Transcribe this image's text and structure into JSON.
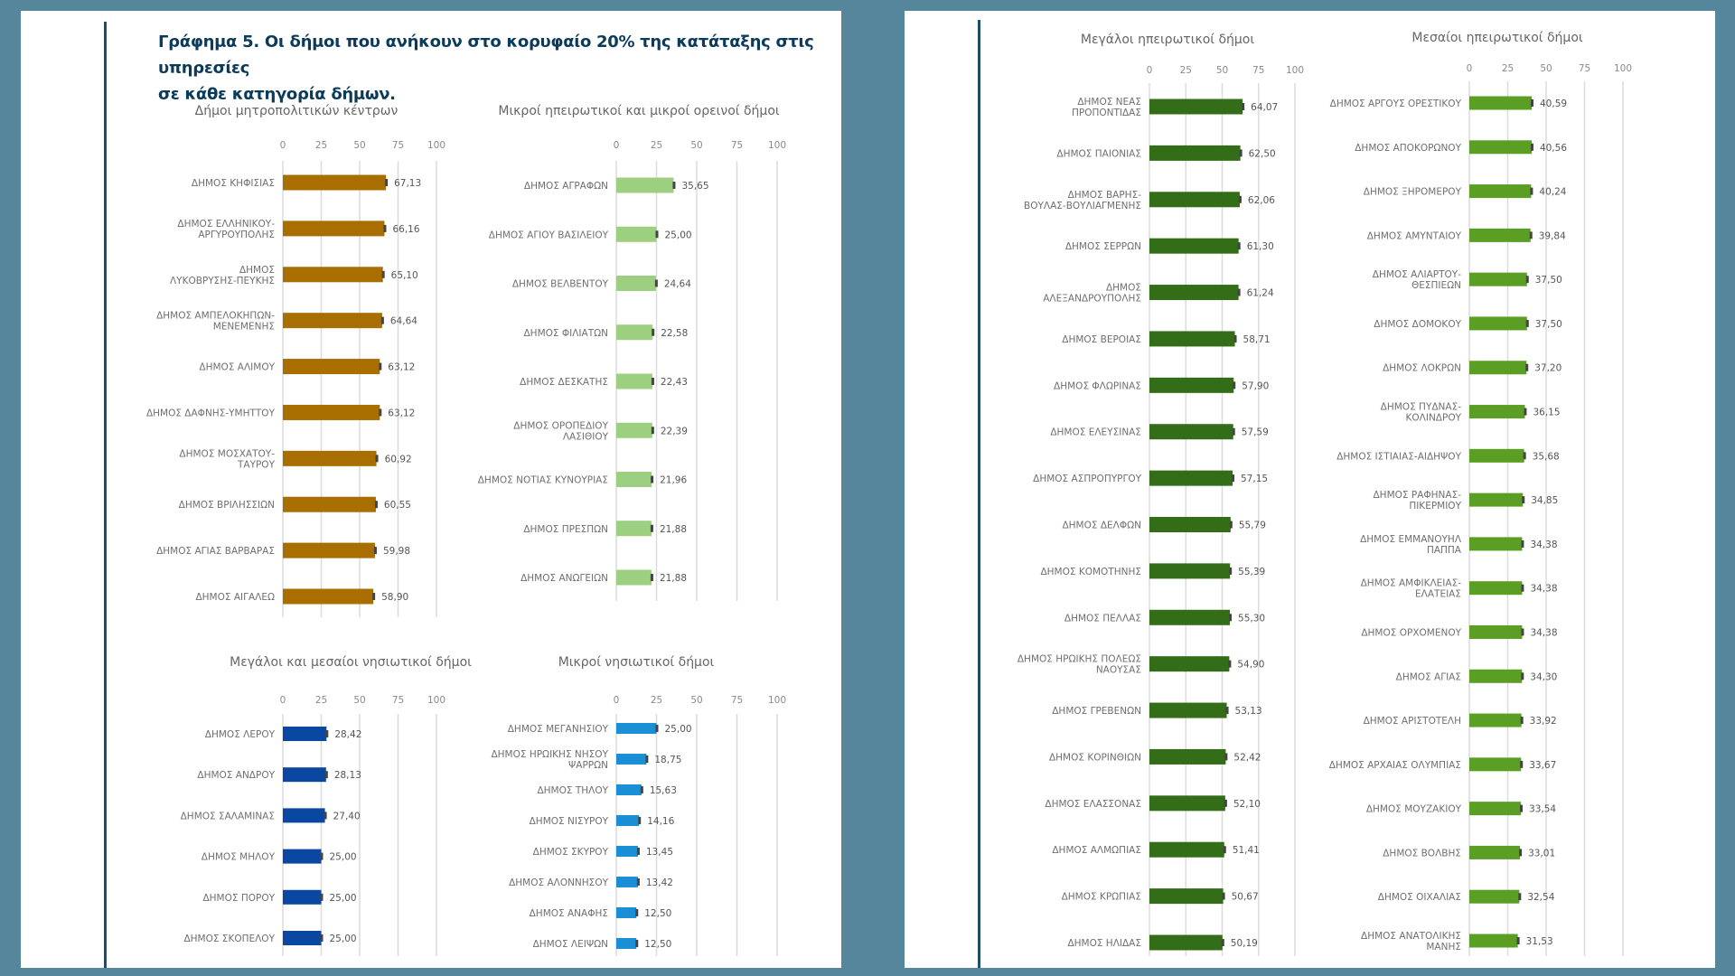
{
  "figure": {
    "title_line1": "Γράφημα 5. Οι δήμοι που ανήκουν στο κορυφαίο 20% της κατάταξης στις υπηρεσίες",
    "title_line2": "σε κάθε κατηγορία δήμων."
  },
  "colors": {
    "background": "#55869c",
    "rule": "#1f4e6b",
    "title": "#0b3b5a"
  },
  "chart_data": [
    {
      "id": "metro",
      "type": "bar",
      "orientation": "horizontal",
      "title": "Δήμοι μητροπολιτικών κέντρων",
      "xlim": [
        0,
        100
      ],
      "ticks": [
        0,
        25,
        50,
        75,
        100
      ],
      "grid": true,
      "color": "#a86f00",
      "categories": [
        [
          "ΔΗΜΟΣ ΚΗΦΙΣΙΑΣ"
        ],
        [
          "ΔΗΜΟΣ ΕΛΛΗΝΙΚΟΥ-",
          "ΑΡΓΥΡΟΥΠΟΛΗΣ"
        ],
        [
          "ΔΗΜΟΣ",
          "ΛΥΚΟΒΡΥΣΗΣ-ΠΕΥΚΗΣ"
        ],
        [
          "ΔΗΜΟΣ ΑΜΠΕΛΟΚΗΠΩΝ-",
          "ΜΕΝΕΜΕΝΗΣ"
        ],
        [
          "ΔΗΜΟΣ ΑΛΙΜΟΥ"
        ],
        [
          "ΔΗΜΟΣ ΔΑΦΝΗΣ-ΥΜΗΤΤΟΥ"
        ],
        [
          "ΔΗΜΟΣ ΜΟΣΧΑΤΟΥ-",
          "ΤΑΥΡΟΥ"
        ],
        [
          "ΔΗΜΟΣ ΒΡΙΛΗΣΣΙΩΝ"
        ],
        [
          "ΔΗΜΟΣ ΑΓΙΑΣ ΒΑΡΒΑΡΑΣ"
        ],
        [
          "ΔΗΜΟΣ ΑΙΓΑΛΕΩ"
        ]
      ],
      "values": [
        67.13,
        66.16,
        65.1,
        64.64,
        63.12,
        63.12,
        60.92,
        60.55,
        59.98,
        58.9
      ],
      "value_labels": [
        "67,13",
        "66,16",
        "65,10",
        "64,64",
        "63,12",
        "63,12",
        "60,92",
        "60,55",
        "59,98",
        "58,90"
      ]
    },
    {
      "id": "small-mainland-mountain",
      "type": "bar",
      "orientation": "horizontal",
      "title": "Μικροί ηπειρωτικοί και μικροί ορεινοί δήμοι",
      "xlim": [
        0,
        100
      ],
      "ticks": [
        0,
        25,
        50,
        75,
        100
      ],
      "grid": true,
      "color": "#9ccf7f",
      "categories": [
        [
          "ΔΗΜΟΣ ΑΓΡΑΦΩΝ"
        ],
        [
          "ΔΗΜΟΣ ΑΓΙΟΥ ΒΑΣΙΛΕΙΟΥ"
        ],
        [
          "ΔΗΜΟΣ ΒΕΛΒΕΝΤΟΥ"
        ],
        [
          "ΔΗΜΟΣ ΦΙΛΙΑΤΩΝ"
        ],
        [
          "ΔΗΜΟΣ ΔΕΣΚΑΤΗΣ"
        ],
        [
          "ΔΗΜΟΣ ΟΡΟΠΕΔΙΟΥ",
          "ΛΑΣΙΘΙΟΥ"
        ],
        [
          "ΔΗΜΟΣ ΝΟΤΙΑΣ ΚΥΝΟΥΡΙΑΣ"
        ],
        [
          "ΔΗΜΟΣ ΠΡΕΣΠΩΝ"
        ],
        [
          "ΔΗΜΟΣ ΑΝΩΓΕΙΩΝ"
        ]
      ],
      "values": [
        35.65,
        25.0,
        24.64,
        22.58,
        22.43,
        22.39,
        21.96,
        21.88,
        21.88
      ],
      "value_labels": [
        "35,65",
        "25,00",
        "24,64",
        "22,58",
        "22,43",
        "22,39",
        "21,96",
        "21,88",
        "21,88"
      ]
    },
    {
      "id": "large-medium-island",
      "type": "bar",
      "orientation": "horizontal",
      "title": "Μεγάλοι και μεσαίοι νησιωτικοί δήμοι",
      "xlim": [
        0,
        100
      ],
      "ticks": [
        0,
        25,
        50,
        75,
        100
      ],
      "grid": true,
      "color": "#0a47a0",
      "categories": [
        [
          "ΔΗΜΟΣ ΛΕΡΟΥ"
        ],
        [
          "ΔΗΜΟΣ ΑΝΔΡΟΥ"
        ],
        [
          "ΔΗΜΟΣ ΣΑΛΑΜΙΝΑΣ"
        ],
        [
          "ΔΗΜΟΣ ΜΗΛΟΥ"
        ],
        [
          "ΔΗΜΟΣ ΠΟΡΟΥ"
        ],
        [
          "ΔΗΜΟΣ ΣΚΟΠΕΛΟΥ"
        ]
      ],
      "values": [
        28.42,
        28.13,
        27.4,
        25.0,
        25.0,
        25.0
      ],
      "value_labels": [
        "28,42",
        "28,13",
        "27,40",
        "25,00",
        "25,00",
        "25,00"
      ]
    },
    {
      "id": "small-island",
      "type": "bar",
      "orientation": "horizontal",
      "title": "Μικροί νησιωτικοί δήμοι",
      "xlim": [
        0,
        100
      ],
      "ticks": [
        0,
        25,
        50,
        75,
        100
      ],
      "grid": true,
      "color": "#1a8fd6",
      "categories": [
        [
          "ΔΗΜΟΣ ΜΕΓΑΝΗΣΙΟΥ"
        ],
        [
          "ΔΗΜΟΣ ΗΡΩΙΚΗΣ ΝΗΣΟΥ",
          "ΨΑΡΡΩΝ"
        ],
        [
          "ΔΗΜΟΣ ΤΗΛΟΥ"
        ],
        [
          "ΔΗΜΟΣ ΝΙΣΥΡΟΥ"
        ],
        [
          "ΔΗΜΟΣ ΣΚΥΡΟΥ"
        ],
        [
          "ΔΗΜΟΣ ΑΛΟΝΝΗΣΟΥ"
        ],
        [
          "ΔΗΜΟΣ ΑΝΑΦΗΣ"
        ],
        [
          "ΔΗΜΟΣ ΛΕΙΨΩΝ"
        ]
      ],
      "values": [
        25.0,
        18.75,
        15.63,
        14.16,
        13.45,
        13.42,
        12.5,
        12.5
      ],
      "value_labels": [
        "25,00",
        "18,75",
        "15,63",
        "14,16",
        "13,45",
        "13,42",
        "12,50",
        "12,50"
      ]
    },
    {
      "id": "large-mainland",
      "type": "bar",
      "orientation": "horizontal",
      "title": "Μεγάλοι ηπειρωτικοί δήμοι",
      "xlim": [
        0,
        100
      ],
      "ticks": [
        0,
        25,
        50,
        75,
        100
      ],
      "grid": true,
      "color": "#336d18",
      "categories": [
        [
          "ΔΗΜΟΣ ΝΕΑΣ",
          "ΠΡΟΠΟΝΤΙΔΑΣ"
        ],
        [
          "ΔΗΜΟΣ ΠΑΙΟΝΙΑΣ"
        ],
        [
          "ΔΗΜΟΣ ΒΑΡΗΣ-",
          "ΒΟΥΛΑΣ-ΒΟΥΛΙΑΓΜΕΝΗΣ"
        ],
        [
          "ΔΗΜΟΣ ΣΕΡΡΩΝ"
        ],
        [
          "ΔΗΜΟΣ",
          "ΑΛΕΞΑΝΔΡΟΥΠΟΛΗΣ"
        ],
        [
          "ΔΗΜΟΣ ΒΕΡΟΙΑΣ"
        ],
        [
          "ΔΗΜΟΣ ΦΛΩΡΙΝΑΣ"
        ],
        [
          "ΔΗΜΟΣ ΕΛΕΥΣΙΝΑΣ"
        ],
        [
          "ΔΗΜΟΣ ΑΣΠΡΟΠΥΡΓΟΥ"
        ],
        [
          "ΔΗΜΟΣ ΔΕΛΦΩΝ"
        ],
        [
          "ΔΗΜΟΣ ΚΟΜΟΤΗΝΗΣ"
        ],
        [
          "ΔΗΜΟΣ ΠΕΛΛΑΣ"
        ],
        [
          "ΔΗΜΟΣ ΗΡΩΙΚΗΣ ΠΟΛΕΩΣ",
          "ΝΑΟΥΣΑΣ"
        ],
        [
          "ΔΗΜΟΣ ΓΡΕΒΕΝΩΝ"
        ],
        [
          "ΔΗΜΟΣ ΚΟΡΙΝΘΙΩΝ"
        ],
        [
          "ΔΗΜΟΣ ΕΛΑΣΣΟΝΑΣ"
        ],
        [
          "ΔΗΜΟΣ ΑΛΜΩΠΙΑΣ"
        ],
        [
          "ΔΗΜΟΣ ΚΡΩΠΙΑΣ"
        ],
        [
          "ΔΗΜΟΣ ΗΛΙΔΑΣ"
        ]
      ],
      "values": [
        64.07,
        62.5,
        62.06,
        61.3,
        61.24,
        58.71,
        57.9,
        57.59,
        57.15,
        55.79,
        55.39,
        55.3,
        54.9,
        53.13,
        52.42,
        52.1,
        51.41,
        50.67,
        50.19
      ],
      "value_labels": [
        "64,07",
        "62,50",
        "62,06",
        "61,30",
        "61,24",
        "58,71",
        "57,90",
        "57,59",
        "57,15",
        "55,79",
        "55,39",
        "55,30",
        "54,90",
        "53,13",
        "52,42",
        "52,10",
        "51,41",
        "50,67",
        "50,19"
      ]
    },
    {
      "id": "medium-mainland",
      "type": "bar",
      "orientation": "horizontal",
      "title": "Μεσαίοι ηπειρωτικοί δήμοι",
      "xlim": [
        0,
        100
      ],
      "ticks": [
        0,
        25,
        50,
        75,
        100
      ],
      "grid": true,
      "color": "#5a9e24",
      "categories": [
        [
          "ΔΗΜΟΣ ΑΡΓΟΥΣ ΟΡΕΣΤΙΚΟΥ"
        ],
        [
          "ΔΗΜΟΣ ΑΠΟΚΟΡΩΝΟΥ"
        ],
        [
          "ΔΗΜΟΣ ΞΗΡΟΜΕΡΟΥ"
        ],
        [
          "ΔΗΜΟΣ ΑΜΥΝΤΑΙΟΥ"
        ],
        [
          "ΔΗΜΟΣ ΑΛΙΑΡΤΟΥ-",
          "ΘΕΣΠΙΕΩΝ"
        ],
        [
          "ΔΗΜΟΣ ΔΟΜΟΚΟΥ"
        ],
        [
          "ΔΗΜΟΣ ΛΟΚΡΩΝ"
        ],
        [
          "ΔΗΜΟΣ ΠΥΔΝΑΣ-",
          "ΚΟΛΙΝΔΡΟΥ"
        ],
        [
          "ΔΗΜΟΣ ΙΣΤΙΑΙΑΣ-ΑΙΔΗΨΟΥ"
        ],
        [
          "ΔΗΜΟΣ ΡΑΦΗΝΑΣ-",
          "ΠΙΚΕΡΜΙΟΥ"
        ],
        [
          "ΔΗΜΟΣ ΕΜΜΑΝΟΥΗΛ",
          "ΠΑΠΠΑ"
        ],
        [
          "ΔΗΜΟΣ ΑΜΦΙΚΛΕΙΑΣ-",
          "ΕΛΑΤΕΙΑΣ"
        ],
        [
          "ΔΗΜΟΣ ΟΡΧΟΜΕΝΟΥ"
        ],
        [
          "ΔΗΜΟΣ ΑΓΙΑΣ"
        ],
        [
          "ΔΗΜΟΣ ΑΡΙΣΤΟΤΕΛΗ"
        ],
        [
          "ΔΗΜΟΣ ΑΡΧΑΙΑΣ ΟΛΥΜΠΙΑΣ"
        ],
        [
          "ΔΗΜΟΣ ΜΟΥΖΑΚΙΟΥ"
        ],
        [
          "ΔΗΜΟΣ ΒΟΛΒΗΣ"
        ],
        [
          "ΔΗΜΟΣ ΟΙΧΑΛΙΑΣ"
        ],
        [
          "ΔΗΜΟΣ ΑΝΑΤΟΛΙΚΗΣ",
          "ΜΑΝΗΣ"
        ]
      ],
      "values": [
        40.59,
        40.56,
        40.24,
        39.84,
        37.5,
        37.5,
        37.2,
        36.15,
        35.68,
        34.85,
        34.38,
        34.38,
        34.38,
        34.3,
        33.92,
        33.67,
        33.54,
        33.01,
        32.54,
        31.53
      ],
      "value_labels": [
        "40,59",
        "40,56",
        "40,24",
        "39,84",
        "37,50",
        "37,50",
        "37,20",
        "36,15",
        "35,68",
        "34,85",
        "34,38",
        "34,38",
        "34,38",
        "34,30",
        "33,92",
        "33,67",
        "33,54",
        "33,01",
        "32,54",
        "31,53"
      ]
    }
  ]
}
